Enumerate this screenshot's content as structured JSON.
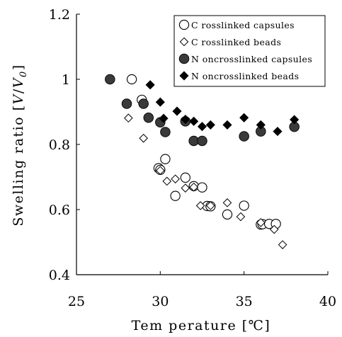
{
  "chart_data": {
    "type": "scatter",
    "title": "",
    "xlabel": "Tem perature [℃]",
    "ylabel_prefix": "Swelling ratio [",
    "ylabel_var1": "V",
    "ylabel_slash": "/",
    "ylabel_var2": "V",
    "ylabel_sub": "0",
    "ylabel_suffix": "]",
    "xlim": [
      25,
      40
    ],
    "ylim": [
      0.4,
      1.2
    ],
    "x_ticks": [
      25,
      30,
      35,
      40
    ],
    "x_tick_labels": [
      "25",
      "30",
      "35",
      "40"
    ],
    "y_ticks": [
      0.4,
      0.6,
      0.8,
      1.0,
      1.2
    ],
    "y_tick_labels": [
      "0.4",
      "0.6",
      "0.8",
      "1",
      "1.2"
    ],
    "grid": false,
    "legend_position": "top-right",
    "series": [
      {
        "name": "C rosslinked capsules",
        "marker": "open-circle",
        "color": "#000000",
        "points": [
          [
            28.3,
            1.0
          ],
          [
            28.9,
            0.937
          ],
          [
            29.9,
            0.727
          ],
          [
            30.0,
            0.722
          ],
          [
            30.3,
            0.755
          ],
          [
            30.9,
            0.642
          ],
          [
            31.5,
            0.698
          ],
          [
            32.0,
            0.672
          ],
          [
            32.5,
            0.668
          ],
          [
            32.8,
            0.611
          ],
          [
            33.0,
            0.61
          ],
          [
            34.0,
            0.585
          ],
          [
            35.0,
            0.612
          ],
          [
            36.0,
            0.554
          ],
          [
            36.1,
            0.555
          ],
          [
            36.5,
            0.556
          ],
          [
            36.9,
            0.556
          ]
        ]
      },
      {
        "name": "C rosslinked beads",
        "marker": "open-diamond",
        "color": "#000000",
        "points": [
          [
            28.1,
            0.881
          ],
          [
            29.0,
            0.819
          ],
          [
            30.0,
            0.72
          ],
          [
            30.4,
            0.687
          ],
          [
            30.9,
            0.694
          ],
          [
            31.5,
            0.666
          ],
          [
            32.0,
            0.669
          ],
          [
            32.4,
            0.612
          ],
          [
            33.0,
            0.612
          ],
          [
            34.0,
            0.621
          ],
          [
            34.8,
            0.578
          ],
          [
            36.0,
            0.56
          ],
          [
            36.8,
            0.539
          ],
          [
            37.3,
            0.492
          ]
        ]
      },
      {
        "name": "N oncrosslinked capsules",
        "marker": "filled-circle",
        "color": "#3a3a3a",
        "points": [
          [
            27.0,
            1.0
          ],
          [
            28.0,
            0.925
          ],
          [
            29.0,
            0.925
          ],
          [
            29.3,
            0.882
          ],
          [
            30.0,
            0.868
          ],
          [
            30.3,
            0.838
          ],
          [
            31.5,
            0.871
          ],
          [
            32.0,
            0.811
          ],
          [
            32.5,
            0.811
          ],
          [
            35.0,
            0.825
          ],
          [
            36.0,
            0.84
          ],
          [
            38.0,
            0.854
          ]
        ]
      },
      {
        "name": "N oncrosslinked beads",
        "marker": "filled-diamond",
        "color": "#000000",
        "points": [
          [
            29.4,
            0.983
          ],
          [
            30.0,
            0.93
          ],
          [
            30.2,
            0.88
          ],
          [
            31.0,
            0.902
          ],
          [
            31.5,
            0.877
          ],
          [
            32.0,
            0.871
          ],
          [
            32.5,
            0.855
          ],
          [
            33.0,
            0.86
          ],
          [
            34.0,
            0.86
          ],
          [
            35.0,
            0.882
          ],
          [
            36.0,
            0.86
          ],
          [
            37.0,
            0.84
          ],
          [
            38.0,
            0.876
          ]
        ]
      }
    ]
  }
}
